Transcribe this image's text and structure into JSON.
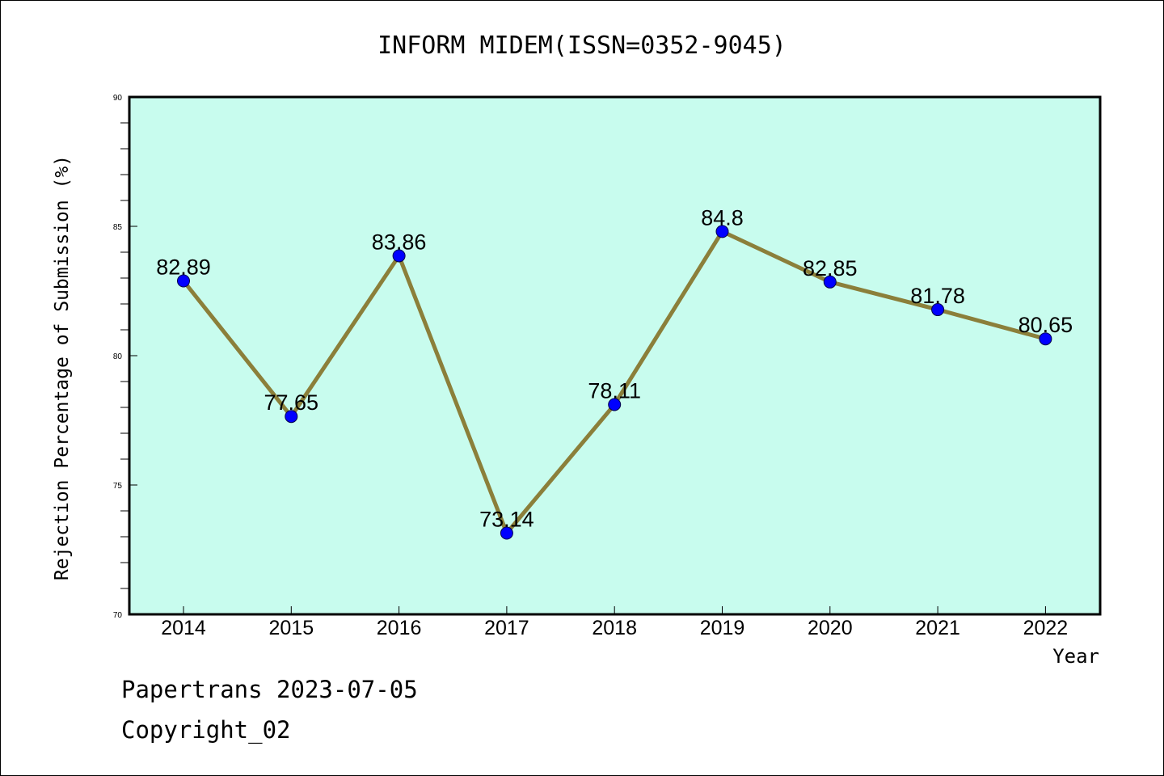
{
  "chart_data": {
    "type": "line",
    "title": "INFORM MIDEM(ISSN=0352-9045)",
    "xlabel": "Year",
    "ylabel": "Rejection Percentage of Submission (%)",
    "categories": [
      "2014",
      "2015",
      "2016",
      "2017",
      "2018",
      "2019",
      "2020",
      "2021",
      "2022"
    ],
    "series": [
      {
        "values": [
          82.89,
          77.65,
          83.86,
          73.14,
          78.11,
          84.8,
          82.85,
          81.78,
          80.65
        ],
        "labels": [
          "82.89",
          "77.65",
          "83.86",
          "73.14",
          "78.11",
          "84.8",
          "82.85",
          "81.78",
          "80.65"
        ]
      }
    ],
    "ylim": [
      70,
      90
    ],
    "yticks": [
      "70",
      "75",
      "80",
      "85",
      "90"
    ],
    "grid": false,
    "legend": "none",
    "colors": {
      "plot_background": "#c8fcee",
      "line": "#8b7f3a",
      "marker": "#0000ff"
    }
  },
  "footer": {
    "line1": "Papertrans 2023-07-05",
    "line2": "Copyright_02"
  }
}
